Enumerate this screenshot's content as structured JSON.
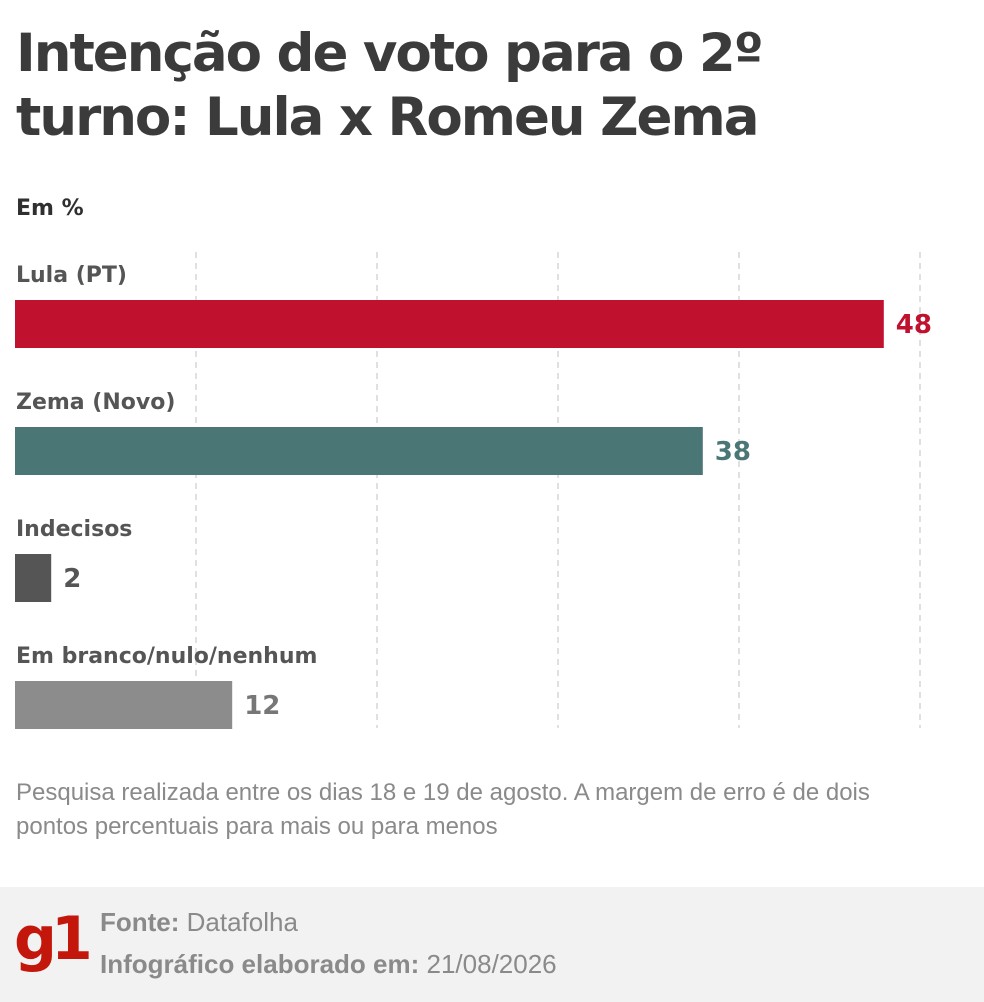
{
  "title": "Intenção de voto para o 2º turno: Lula x Romeu Zema",
  "unit_label": "Em %",
  "chart_data": {
    "type": "bar",
    "orientation": "horizontal",
    "categories": [
      "Lula (PT)",
      "Zema (Novo)",
      "Indecisos",
      "Em branco/nulo/nenhum"
    ],
    "values": [
      48,
      38,
      2,
      12
    ],
    "bar_colors": [
      "#c0112f",
      "#4a7675",
      "#555555",
      "#8c8c8c"
    ],
    "label_colors": [
      "#c0112f",
      "#4a7675",
      "#555555",
      "#777777"
    ],
    "xlim": [
      0,
      50
    ],
    "grid": true
  },
  "footnote": "Pesquisa realizada entre os dias 18 e 19 de agosto. A margem de erro é de dois pontos percentuais para mais ou para menos",
  "footer": {
    "logo": "g1",
    "source_label": "Fonte:",
    "source_value": "Datafolha",
    "date_label": "Infográfico elaborado em:",
    "date_value": "21/08/2026"
  }
}
